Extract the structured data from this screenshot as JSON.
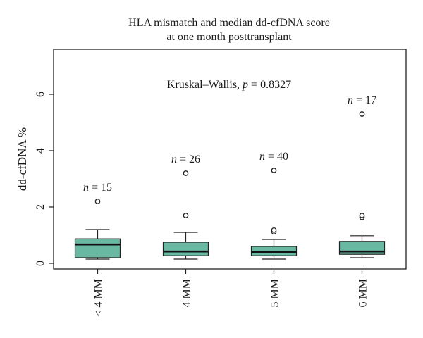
{
  "chart_data": {
    "type": "box",
    "title_lines": [
      "HLA mismatch and median dd-cfDNA score",
      "at one month posttransplant"
    ],
    "ylabel": "dd-cfDNA %",
    "xlabel": "",
    "ylim": [
      -0.2,
      7.6
    ],
    "yticks": [
      0,
      2,
      4,
      6
    ],
    "grid": false,
    "box_color": "#69b8a2",
    "annotation": {
      "prefix": "Kruskal–Wallis, ",
      "p_symbol": "p",
      "p_value": " = 0.8327"
    },
    "categories": [
      "< 4 MM",
      "4 MM",
      "5 MM",
      "6 MM"
    ],
    "boxes": [
      {
        "category": "< 4 MM",
        "n_label": "n",
        "n_value": " = 15",
        "whisker_low": 0.15,
        "q1": 0.2,
        "median": 0.67,
        "q3": 0.87,
        "whisker_high": 1.2,
        "outliers": [
          2.2
        ]
      },
      {
        "category": "4 MM",
        "n_label": "n",
        "n_value": " = 26",
        "whisker_low": 0.15,
        "q1": 0.27,
        "median": 0.42,
        "q3": 0.75,
        "whisker_high": 1.1,
        "outliers": [
          1.7,
          3.2
        ]
      },
      {
        "category": "5 MM",
        "n_label": "n",
        "n_value": " = 40",
        "whisker_low": 0.15,
        "q1": 0.27,
        "median": 0.4,
        "q3": 0.6,
        "whisker_high": 0.85,
        "outliers": [
          1.12,
          1.18,
          3.3
        ]
      },
      {
        "category": "6 MM",
        "n_label": "n",
        "n_value": " = 17",
        "whisker_low": 0.2,
        "q1": 0.32,
        "median": 0.42,
        "q3": 0.78,
        "whisker_high": 0.98,
        "outliers": [
          1.63,
          1.7,
          5.3
        ]
      }
    ]
  }
}
